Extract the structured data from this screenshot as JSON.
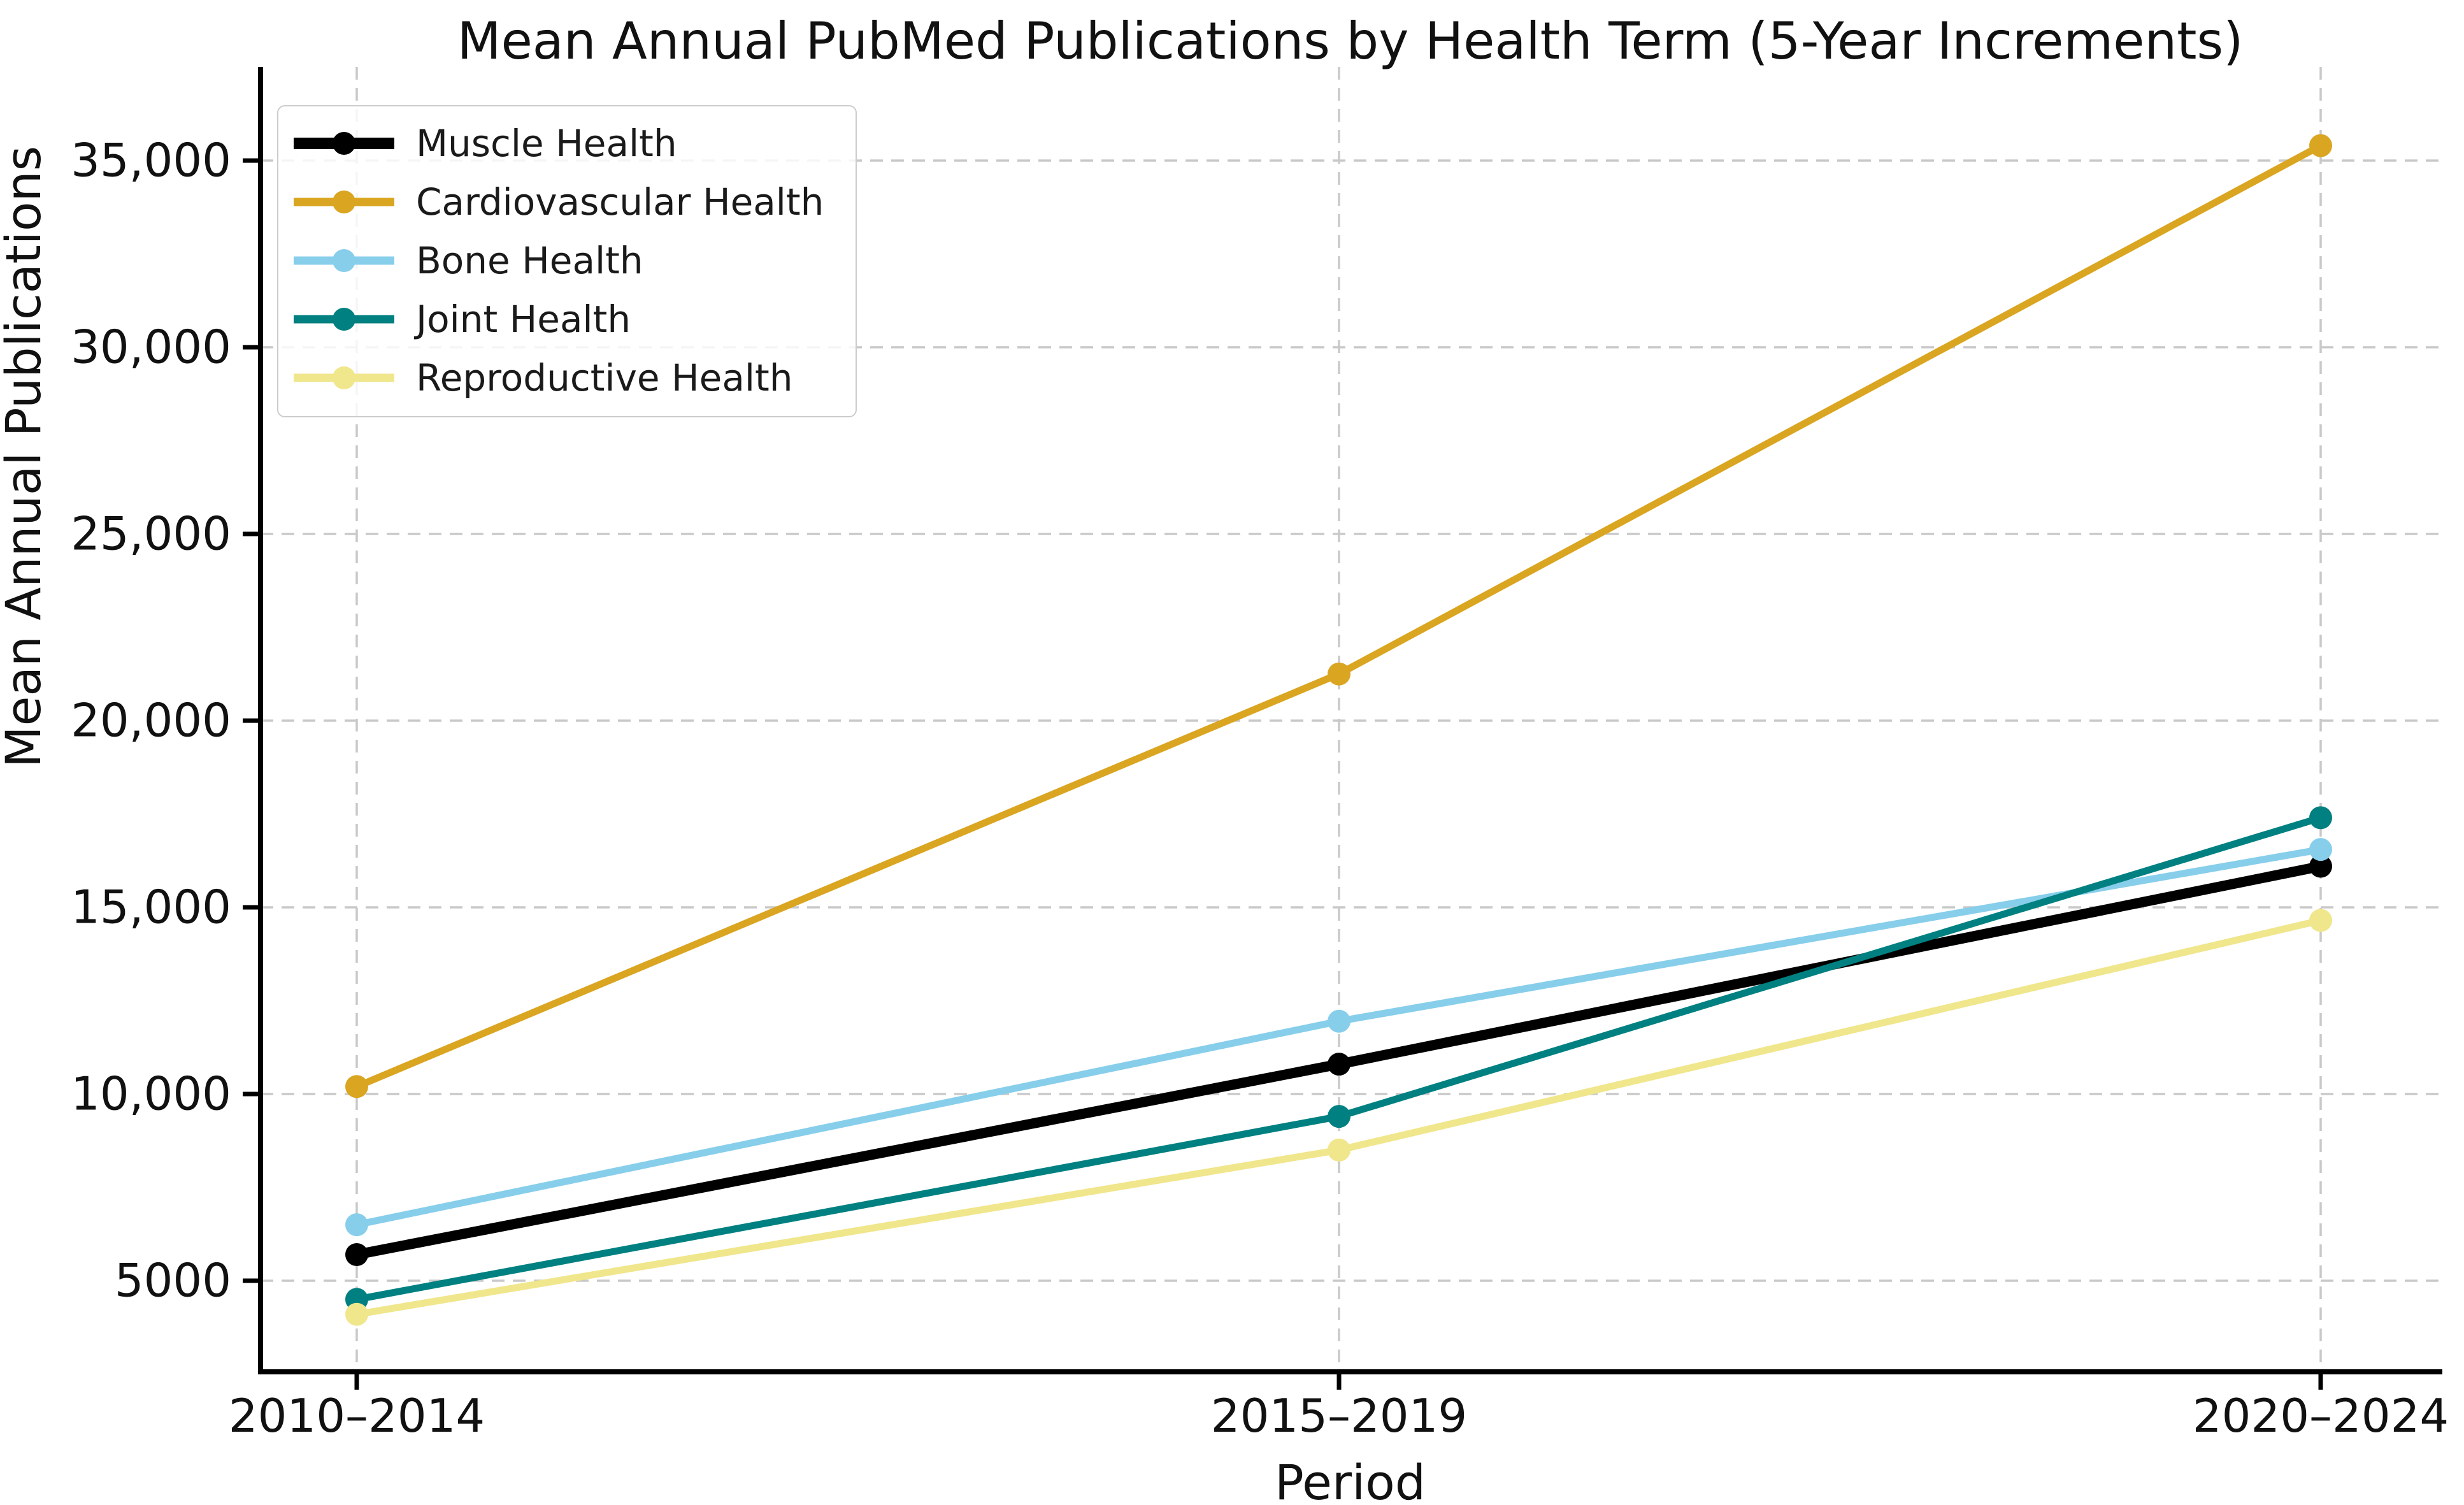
{
  "figure": {
    "title": "Mean Annual PubMed Publications by Health Term (5-Year Increments)",
    "xlabel": "Period",
    "ylabel": "Mean Annual Publications"
  },
  "chart_data": {
    "type": "line",
    "title": "Mean Annual PubMed Publications by Health Term (5-Year Increments)",
    "xlabel": "Period",
    "ylabel": "Mean Annual Publications",
    "categories": [
      "2010–2014",
      "2015–2019",
      "2020–2024"
    ],
    "series": [
      {
        "name": "Muscle Health",
        "color": "#000000",
        "values": [
          5700,
          10800,
          16100
        ],
        "line_width": 16
      },
      {
        "name": "Cardiovascular Health",
        "color": "#DAA520",
        "values": [
          10200,
          21250,
          35400
        ],
        "line_width": 11
      },
      {
        "name": "Bone Health",
        "color": "#87CEEB",
        "values": [
          6500,
          11950,
          16550
        ],
        "line_width": 11
      },
      {
        "name": "Joint Health",
        "color": "#008080",
        "values": [
          4500,
          9400,
          17400
        ],
        "line_width": 11
      },
      {
        "name": "Reproductive Health",
        "color": "#F0E68C",
        "values": [
          4100,
          8500,
          14650
        ],
        "line_width": 11
      }
    ],
    "yticks": [
      5000,
      10000,
      15000,
      20000,
      25000,
      30000,
      35000
    ],
    "ytick_labels": [
      "5000",
      "10,000",
      "15,000",
      "20,000",
      "25,000",
      "30,000",
      "35,000"
    ],
    "ylim": [
      2560,
      37680
    ],
    "grid": true,
    "grid_style": "dashed",
    "legend_position": "upper left",
    "marker": "circle"
  },
  "style": {
    "background": "#ffffff",
    "grid_color": "#c9c9c9",
    "axis_color": "#000000",
    "text_color": "#111111",
    "legend_border_color": "#cccccc"
  }
}
